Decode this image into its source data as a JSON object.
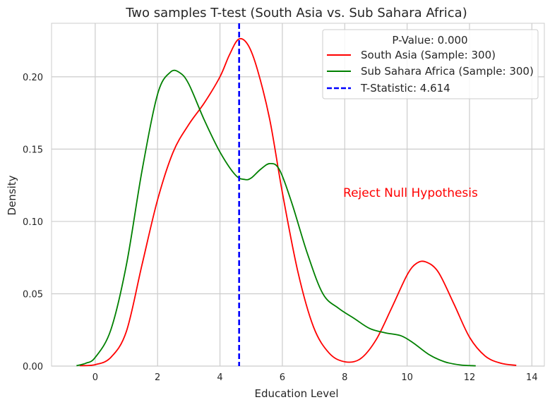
{
  "chart_data": {
    "type": "line",
    "title": "Two samples T-test (South Asia vs. Sub Sahara Africa)",
    "xlabel": "Education Level",
    "ylabel": "Density",
    "xlim": [
      -1.4,
      14.4
    ],
    "ylim": [
      0,
      0.237
    ],
    "x_ticks": [
      0,
      2,
      4,
      6,
      8,
      10,
      12,
      14
    ],
    "y_ticks": [
      0.0,
      0.05,
      0.1,
      0.15,
      0.2
    ],
    "x_tick_labels": [
      "0",
      "2",
      "4",
      "6",
      "8",
      "10",
      "12",
      "14"
    ],
    "y_tick_labels": [
      "0.00",
      "0.05",
      "0.10",
      "0.15",
      "0.20"
    ],
    "grid": true,
    "legend": {
      "placement": "top-right",
      "title": "P-Value: 0.000",
      "entries": [
        "South Asia (Sample: 300)",
        "Sub Sahara Africa (Sample: 300)",
        "T-Statistic: 4.614"
      ]
    },
    "series": [
      {
        "name": "South Asia (Sample: 300)",
        "color": "#ff0000",
        "x": [
          -0.5,
          0,
          0.5,
          1,
          1.5,
          2,
          2.5,
          3,
          3.5,
          4,
          4.3,
          4.6,
          4.9,
          5.2,
          5.6,
          6,
          6.5,
          7,
          7.5,
          8,
          8.5,
          9,
          9.5,
          10,
          10.3,
          10.6,
          11,
          11.5,
          12,
          12.5,
          13,
          13.5
        ],
        "y": [
          0.0003,
          0.001,
          0.006,
          0.024,
          0.07,
          0.115,
          0.148,
          0.167,
          0.182,
          0.2,
          0.215,
          0.226,
          0.222,
          0.205,
          0.17,
          0.12,
          0.065,
          0.027,
          0.009,
          0.003,
          0.005,
          0.018,
          0.04,
          0.063,
          0.071,
          0.072,
          0.065,
          0.043,
          0.02,
          0.007,
          0.002,
          0.0005
        ]
      },
      {
        "name": "Sub Sahara Africa (Sample: 300)",
        "color": "#008000",
        "x": [
          -0.6,
          -0.3,
          0,
          0.5,
          1,
          1.5,
          2,
          2.4,
          2.7,
          3,
          3.5,
          4,
          4.5,
          4.8,
          5,
          5.3,
          5.6,
          5.9,
          6.3,
          6.8,
          7.3,
          7.8,
          8.3,
          8.8,
          9.3,
          9.8,
          10.2,
          10.7,
          11.2,
          11.7,
          12.2
        ],
        "y": [
          0.0003,
          0.002,
          0.006,
          0.025,
          0.07,
          0.135,
          0.188,
          0.203,
          0.203,
          0.195,
          0.17,
          0.148,
          0.132,
          0.129,
          0.13,
          0.136,
          0.14,
          0.136,
          0.113,
          0.078,
          0.05,
          0.04,
          0.033,
          0.026,
          0.023,
          0.021,
          0.016,
          0.008,
          0.003,
          0.0008,
          0.0002
        ]
      }
    ],
    "vline": {
      "name": "T-Statistic: 4.614",
      "x": 4.614,
      "color": "#0000ff",
      "style": "dashed"
    },
    "annotation": {
      "text": "Reject Null Hypothesis",
      "x": 7.95,
      "y": 0.12,
      "color": "#ff0000"
    }
  }
}
